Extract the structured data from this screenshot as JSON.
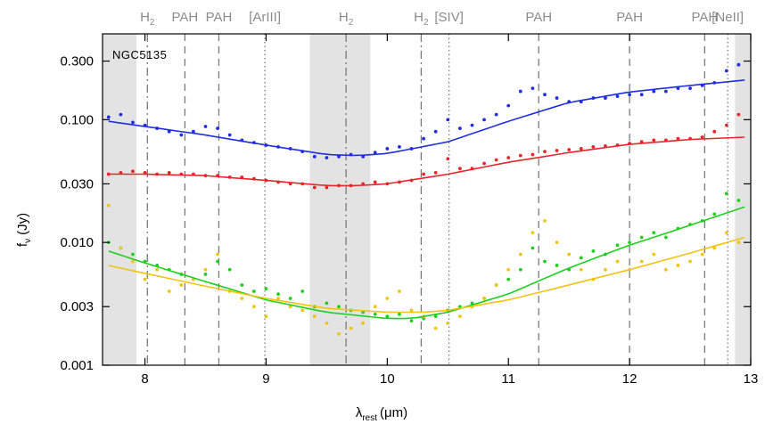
{
  "chart_data": {
    "type": "scatter",
    "object_label": "NGC5135",
    "xlabel": "λ",
    "xlabel_sub": "rest",
    "xlabel_unit": "(μm)",
    "ylabel": "f",
    "ylabel_sub": "ν",
    "ylabel_unit": "(Jy)",
    "x_range": [
      7.65,
      13.0
    ],
    "y_range": [
      0.001,
      0.5
    ],
    "y_scale": "log",
    "x_ticks": [
      8,
      9,
      10,
      11,
      12,
      13
    ],
    "x_tick_labels": [
      "8",
      "9",
      "10",
      "11",
      "12",
      "13"
    ],
    "y_ticks": [
      0.001,
      0.003,
      0.01,
      0.03,
      0.1,
      0.3
    ],
    "y_tick_labels": [
      "0.001",
      "0.003",
      "0.010",
      "0.030",
      "0.100",
      "0.300"
    ],
    "shaded_regions": [
      [
        7.65,
        7.93
      ],
      [
        9.36,
        9.86
      ],
      [
        12.87,
        13.0
      ]
    ],
    "feature_lines": [
      {
        "x": 8.02,
        "label": "H",
        "sub": "2",
        "style": "dashdot"
      },
      {
        "x": 8.33,
        "label": "PAH",
        "sub": "",
        "style": "dashed"
      },
      {
        "x": 8.61,
        "label": "PAH",
        "sub": "",
        "style": "dashed"
      },
      {
        "x": 8.99,
        "label": "[ArIII]",
        "sub": "",
        "style": "dotted"
      },
      {
        "x": 9.66,
        "label": "H",
        "sub": "2",
        "style": "dashdot"
      },
      {
        "x": 10.28,
        "label": "H",
        "sub": "2",
        "style": "dashdot"
      },
      {
        "x": 10.51,
        "label": "[SIV]",
        "sub": "",
        "style": "dotted"
      },
      {
        "x": 11.25,
        "label": "PAH",
        "sub": "",
        "style": "dashed"
      },
      {
        "x": 12.0,
        "label": "PAH",
        "sub": "",
        "style": "dashed"
      },
      {
        "x": 12.62,
        "label": "PAH",
        "sub": "",
        "style": "dashed"
      },
      {
        "x": 12.81,
        "label": "[NeII]",
        "sub": "",
        "style": "dotted"
      }
    ],
    "series": [
      {
        "color": "#1f2fe0",
        "model_x": [
          7.7,
          8.0,
          8.5,
          9.0,
          9.5,
          9.75,
          10.0,
          10.5,
          11.0,
          11.5,
          12.0,
          12.5,
          12.95
        ],
        "model_y": [
          0.097,
          0.088,
          0.075,
          0.062,
          0.052,
          0.051,
          0.053,
          0.066,
          0.097,
          0.138,
          0.168,
          0.19,
          0.21
        ],
        "points_x": [
          7.7,
          7.8,
          7.9,
          8.0,
          8.1,
          8.2,
          8.3,
          8.4,
          8.5,
          8.6,
          8.7,
          8.8,
          8.9,
          9.0,
          9.1,
          9.2,
          9.3,
          9.4,
          9.5,
          9.6,
          9.7,
          9.8,
          9.9,
          10.0,
          10.1,
          10.2,
          10.3,
          10.4,
          10.5,
          10.6,
          10.7,
          10.8,
          10.9,
          11.0,
          11.1,
          11.2,
          11.3,
          11.4,
          11.5,
          11.6,
          11.7,
          11.8,
          11.9,
          12.0,
          12.1,
          12.2,
          12.3,
          12.4,
          12.5,
          12.6,
          12.7,
          12.8,
          12.9
        ],
        "points_y": [
          0.105,
          0.11,
          0.095,
          0.09,
          0.085,
          0.08,
          0.075,
          0.08,
          0.088,
          0.085,
          0.075,
          0.068,
          0.065,
          0.062,
          0.06,
          0.058,
          0.055,
          0.05,
          0.049,
          0.05,
          0.052,
          0.05,
          0.054,
          0.058,
          0.06,
          0.058,
          0.07,
          0.08,
          0.1,
          0.085,
          0.09,
          0.1,
          0.11,
          0.13,
          0.17,
          0.18,
          0.16,
          0.15,
          0.14,
          0.14,
          0.15,
          0.15,
          0.155,
          0.16,
          0.16,
          0.17,
          0.17,
          0.18,
          0.18,
          0.19,
          0.2,
          0.25,
          0.28
        ]
      },
      {
        "color": "#e8252a",
        "model_x": [
          7.7,
          8.0,
          8.5,
          9.0,
          9.5,
          9.75,
          10.0,
          10.5,
          11.0,
          11.5,
          12.0,
          12.5,
          12.95
        ],
        "model_y": [
          0.036,
          0.036,
          0.035,
          0.032,
          0.029,
          0.029,
          0.03,
          0.036,
          0.045,
          0.054,
          0.063,
          0.069,
          0.072
        ],
        "points_x": [
          7.7,
          7.8,
          7.9,
          8.0,
          8.1,
          8.2,
          8.3,
          8.4,
          8.5,
          8.6,
          8.7,
          8.8,
          8.9,
          9.0,
          9.1,
          9.2,
          9.3,
          9.4,
          9.5,
          9.6,
          9.7,
          9.8,
          9.9,
          10.0,
          10.1,
          10.2,
          10.3,
          10.4,
          10.5,
          10.6,
          10.7,
          10.8,
          10.9,
          11.0,
          11.1,
          11.2,
          11.3,
          11.4,
          11.5,
          11.6,
          11.7,
          11.8,
          11.9,
          12.0,
          12.1,
          12.2,
          12.3,
          12.4,
          12.5,
          12.6,
          12.7,
          12.8,
          12.9
        ],
        "points_y": [
          0.036,
          0.037,
          0.038,
          0.037,
          0.036,
          0.037,
          0.036,
          0.036,
          0.035,
          0.035,
          0.034,
          0.034,
          0.033,
          0.032,
          0.031,
          0.03,
          0.03,
          0.028,
          0.028,
          0.029,
          0.029,
          0.03,
          0.031,
          0.03,
          0.031,
          0.032,
          0.036,
          0.037,
          0.048,
          0.04,
          0.04,
          0.044,
          0.047,
          0.049,
          0.051,
          0.052,
          0.055,
          0.056,
          0.057,
          0.058,
          0.06,
          0.061,
          0.062,
          0.064,
          0.066,
          0.068,
          0.068,
          0.07,
          0.07,
          0.072,
          0.08,
          0.09,
          0.11
        ]
      },
      {
        "color": "#1fcf1f",
        "model_x": [
          7.7,
          8.0,
          8.5,
          9.0,
          9.5,
          10.0,
          10.2,
          10.5,
          11.0,
          11.5,
          12.0,
          12.5,
          12.95
        ],
        "model_y": [
          0.0085,
          0.0068,
          0.0048,
          0.0034,
          0.0027,
          0.0024,
          0.0024,
          0.0027,
          0.0038,
          0.0062,
          0.0095,
          0.0138,
          0.0195
        ],
        "points_x": [
          7.7,
          7.8,
          7.9,
          8.0,
          8.1,
          8.2,
          8.3,
          8.4,
          8.5,
          8.6,
          8.7,
          8.8,
          8.9,
          9.0,
          9.1,
          9.2,
          9.3,
          9.4,
          9.5,
          9.6,
          9.7,
          9.8,
          9.9,
          10.0,
          10.1,
          10.2,
          10.3,
          10.4,
          10.5,
          10.6,
          10.7,
          10.8,
          10.9,
          11.0,
          11.1,
          11.2,
          11.3,
          11.4,
          11.5,
          11.6,
          11.7,
          11.8,
          11.9,
          12.0,
          12.1,
          12.2,
          12.3,
          12.4,
          12.5,
          12.6,
          12.7,
          12.8,
          12.9
        ],
        "points_y": [
          0.01,
          0.009,
          0.008,
          0.007,
          0.0065,
          0.006,
          0.0055,
          0.005,
          0.0055,
          0.007,
          0.006,
          0.0045,
          0.004,
          0.0042,
          0.0038,
          0.0035,
          0.004,
          0.003,
          0.0032,
          0.003,
          0.0028,
          0.0027,
          0.0026,
          0.0025,
          0.0026,
          0.0023,
          0.0024,
          0.0025,
          0.0028,
          0.003,
          0.0032,
          0.0035,
          0.0045,
          0.005,
          0.006,
          0.009,
          0.007,
          0.0065,
          0.006,
          0.0075,
          0.0085,
          0.008,
          0.0095,
          0.01,
          0.011,
          0.012,
          0.011,
          0.013,
          0.014,
          0.015,
          0.017,
          0.025,
          0.022
        ]
      },
      {
        "color": "#f2c30f",
        "model_x": [
          7.7,
          8.0,
          8.5,
          9.0,
          9.5,
          10.0,
          10.3,
          10.5,
          11.0,
          11.5,
          12.0,
          12.5,
          12.95
        ],
        "model_y": [
          0.0065,
          0.0056,
          0.0044,
          0.0035,
          0.0029,
          0.0027,
          0.0027,
          0.0028,
          0.0034,
          0.0045,
          0.006,
          0.0082,
          0.011
        ],
        "points_x": [
          7.7,
          7.8,
          7.9,
          8.0,
          8.1,
          8.2,
          8.3,
          8.4,
          8.5,
          8.6,
          8.7,
          8.8,
          8.9,
          9.0,
          9.1,
          9.2,
          9.3,
          9.4,
          9.5,
          9.6,
          9.7,
          9.8,
          9.9,
          10.0,
          10.1,
          10.2,
          10.3,
          10.4,
          10.5,
          10.6,
          10.7,
          10.8,
          10.9,
          11.0,
          11.1,
          11.2,
          11.3,
          11.4,
          11.5,
          11.6,
          11.7,
          11.8,
          11.9,
          12.0,
          12.1,
          12.2,
          12.3,
          12.4,
          12.5,
          12.6,
          12.7,
          12.8,
          12.9
        ],
        "points_y": [
          0.02,
          0.009,
          0.007,
          0.005,
          0.006,
          0.004,
          0.0045,
          0.005,
          0.006,
          0.008,
          0.004,
          0.0035,
          0.003,
          0.0025,
          0.0035,
          0.003,
          0.0028,
          0.0025,
          0.0022,
          0.0018,
          0.002,
          0.0022,
          0.003,
          0.0035,
          0.004,
          0.0028,
          0.0025,
          0.002,
          0.0022,
          0.0025,
          0.003,
          0.0035,
          0.0045,
          0.006,
          0.008,
          0.012,
          0.015,
          0.01,
          0.008,
          0.006,
          0.005,
          0.006,
          0.007,
          0.006,
          0.007,
          0.008,
          0.006,
          0.0065,
          0.007,
          0.008,
          0.009,
          0.012,
          0.01
        ]
      }
    ]
  }
}
